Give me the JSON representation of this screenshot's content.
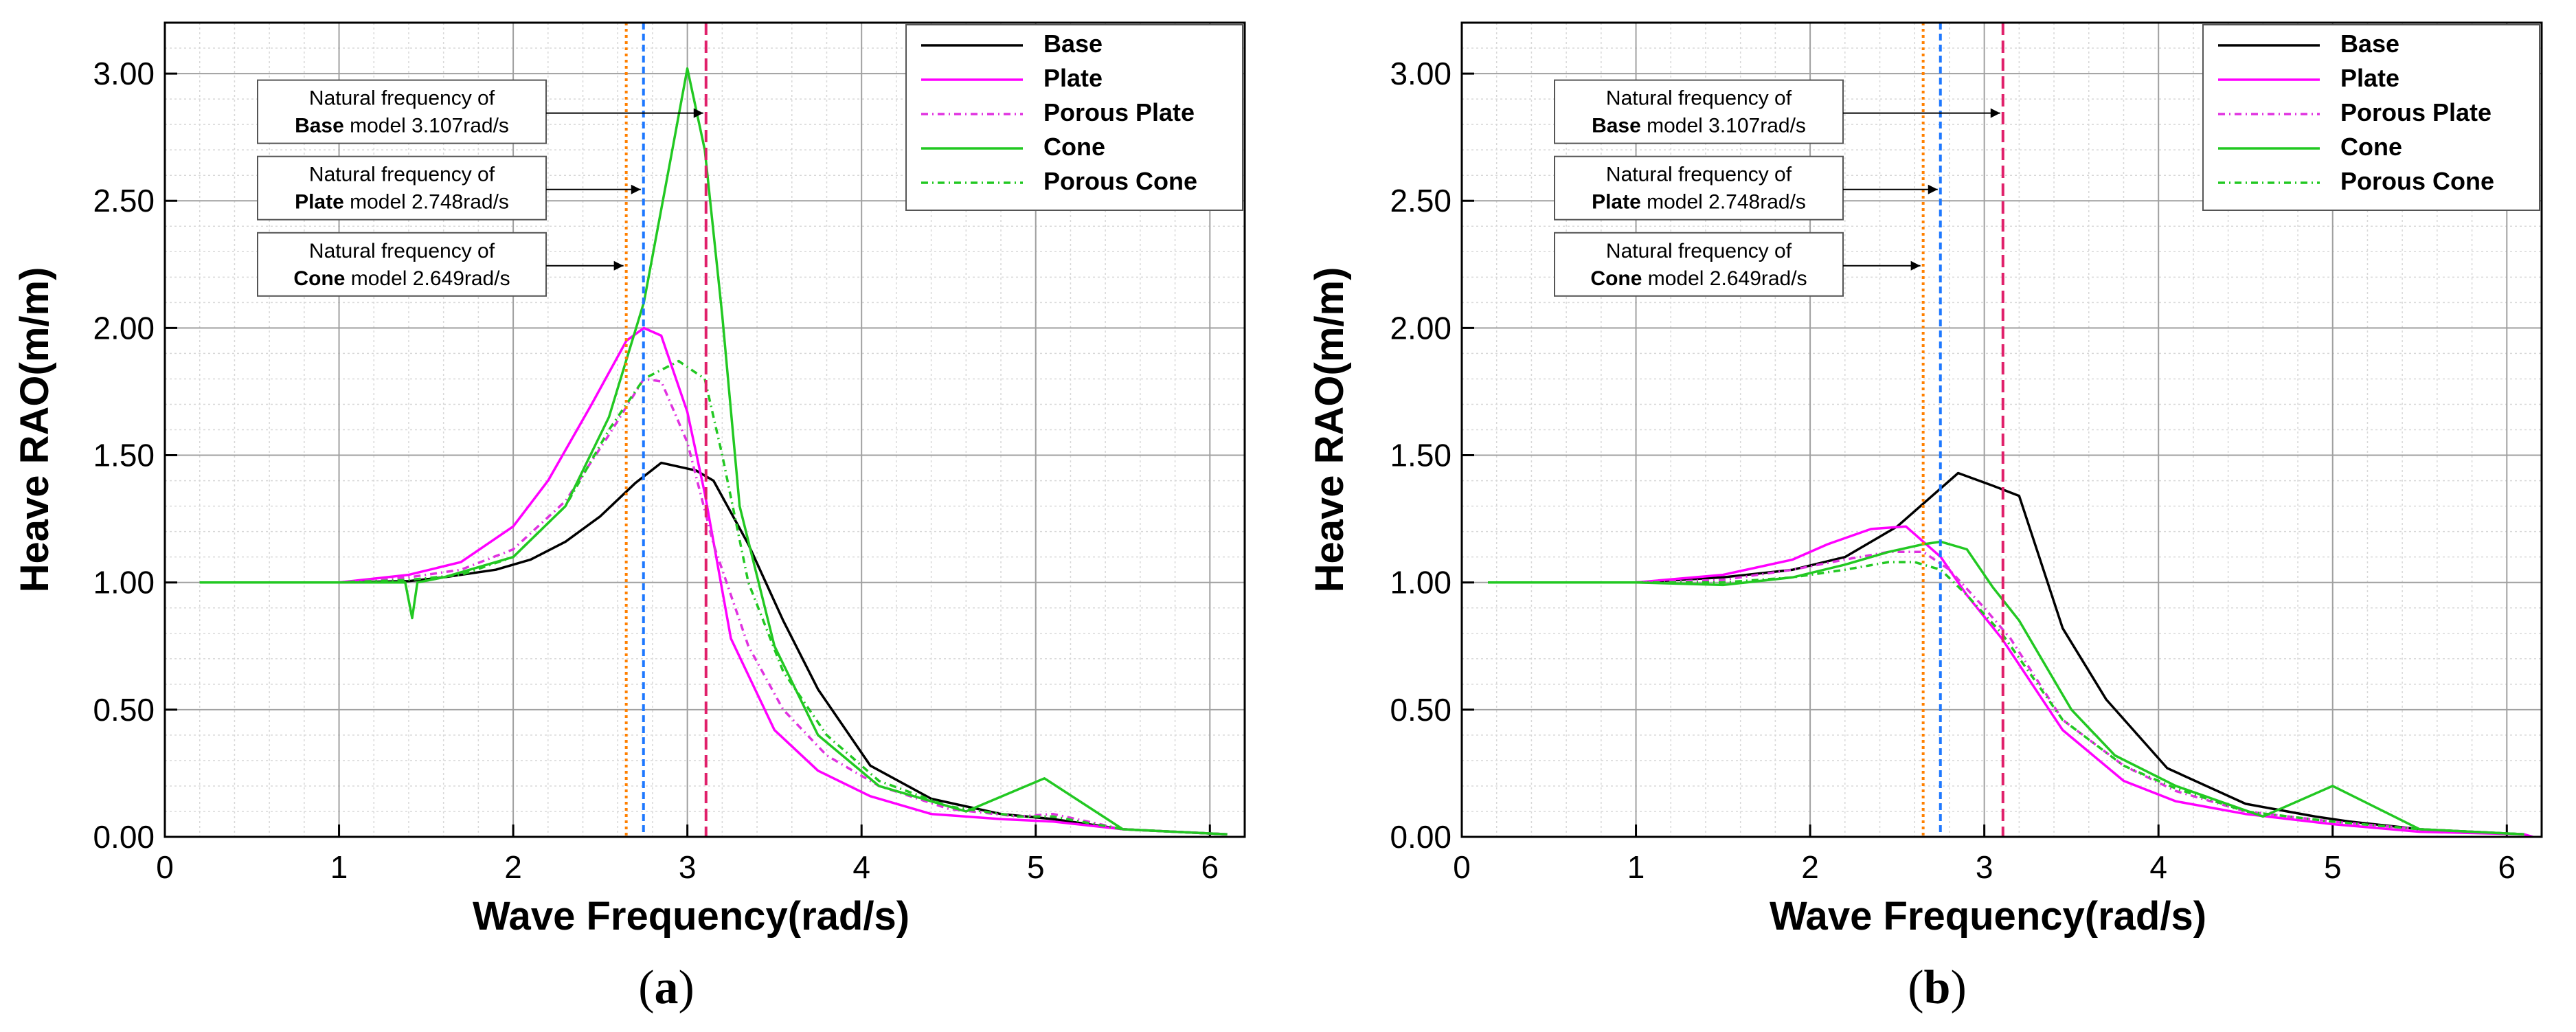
{
  "chart_data": [
    {
      "type": "line",
      "panel_label": "(a)",
      "xlabel": "Wave Frequency(rad/s)",
      "ylabel": "Heave RAO(m/m)",
      "xlim": [
        0,
        6.2
      ],
      "ylim": [
        0,
        3.2
      ],
      "xticks": [
        "0",
        "1",
        "2",
        "3",
        "4",
        "5",
        "6"
      ],
      "yticks": [
        "0.00",
        "0.50",
        "1.00",
        "1.50",
        "2.00",
        "2.50",
        "3.00"
      ],
      "grid": true,
      "legend_position": "top-right",
      "series": [
        {
          "name": "Base",
          "color": "#000000",
          "dash": "solid",
          "x": [
            0.2,
            1.0,
            1.4,
            1.6,
            1.9,
            2.1,
            2.3,
            2.5,
            2.7,
            2.85,
            3.05,
            3.15,
            3.35,
            3.55,
            3.75,
            4.05,
            4.4,
            4.8,
            5.1,
            5.5,
            6.1
          ],
          "y": [
            1.0,
            1.0,
            1.005,
            1.02,
            1.05,
            1.09,
            1.16,
            1.26,
            1.39,
            1.47,
            1.44,
            1.4,
            1.15,
            0.85,
            0.58,
            0.28,
            0.15,
            0.09,
            0.07,
            0.03,
            0.01
          ]
        },
        {
          "name": "Plate",
          "color": "#ff00ff",
          "dash": "solid",
          "x": [
            0.2,
            1.0,
            1.4,
            1.7,
            2.0,
            2.2,
            2.45,
            2.65,
            2.75,
            2.85,
            3.0,
            3.1,
            3.25,
            3.5,
            3.75,
            4.05,
            4.4,
            4.8,
            5.1,
            5.5,
            6.1
          ],
          "y": [
            1.0,
            1.0,
            1.03,
            1.08,
            1.22,
            1.4,
            1.7,
            1.95,
            2.0,
            1.97,
            1.67,
            1.35,
            0.78,
            0.42,
            0.26,
            0.16,
            0.09,
            0.07,
            0.06,
            0.03,
            0.01
          ]
        },
        {
          "name": "Porous Plate",
          "color": "#e032e0",
          "dash": "10,6,2,6",
          "x": [
            0.2,
            1.0,
            1.4,
            1.7,
            2.0,
            2.3,
            2.55,
            2.75,
            2.85,
            3.0,
            3.15,
            3.35,
            3.55,
            3.8,
            4.1,
            4.5,
            4.9,
            5.1,
            5.5,
            6.1
          ],
          "y": [
            1.0,
            1.0,
            1.02,
            1.05,
            1.13,
            1.32,
            1.58,
            1.8,
            1.79,
            1.55,
            1.15,
            0.75,
            0.5,
            0.32,
            0.2,
            0.11,
            0.08,
            0.09,
            0.03,
            0.01
          ]
        },
        {
          "name": "Cone",
          "color": "#22c822",
          "dash": "solid",
          "x": [
            0.2,
            1.0,
            1.38,
            1.42,
            1.45,
            1.6,
            2.0,
            2.3,
            2.55,
            2.75,
            2.9,
            3.0,
            3.1,
            3.2,
            3.3,
            3.5,
            3.75,
            4.1,
            4.6,
            5.05,
            5.5,
            6.1
          ],
          "y": [
            1.0,
            1.0,
            1.0,
            0.86,
            1.0,
            1.02,
            1.1,
            1.3,
            1.65,
            2.1,
            2.65,
            3.02,
            2.7,
            2.05,
            1.3,
            0.75,
            0.4,
            0.2,
            0.1,
            0.23,
            0.03,
            0.01
          ]
        },
        {
          "name": "Porous Cone",
          "color": "#22c822",
          "dash": "10,6,2,6",
          "x": [
            0.2,
            1.0,
            1.4,
            1.7,
            2.0,
            2.3,
            2.55,
            2.75,
            2.95,
            3.1,
            3.2,
            3.35,
            3.55,
            3.8,
            4.1,
            4.5,
            4.9,
            5.1,
            5.5,
            6.1
          ],
          "y": [
            1.0,
            1.0,
            1.01,
            1.03,
            1.1,
            1.3,
            1.6,
            1.8,
            1.87,
            1.8,
            1.5,
            1.0,
            0.65,
            0.4,
            0.22,
            0.12,
            0.08,
            0.08,
            0.03,
            0.01
          ]
        }
      ],
      "vlines": [
        {
          "name": "cone-natural-frequency",
          "x": 2.649,
          "color": "#ff8000",
          "dash": "4,5"
        },
        {
          "name": "plate-natural-frequency",
          "x": 2.748,
          "color": "#1e78ff",
          "dash": "10,6"
        },
        {
          "name": "base-natural-frequency",
          "x": 3.107,
          "color": "#e0206a",
          "dash": "18,8"
        }
      ],
      "annotations": [
        {
          "line1": "Natural frequency of",
          "bold": "Base",
          "rest": " model 3.107rad/s",
          "target_x": 3.107,
          "y": 2.85
        },
        {
          "line1": "Natural frequency of",
          "bold": "Plate",
          "rest": " model 2.748rad/s",
          "target_x": 2.748,
          "y": 2.55
        },
        {
          "line1": "Natural frequency of",
          "bold": "Cone",
          "rest": " model 2.649rad/s",
          "target_x": 2.649,
          "y": 2.25
        }
      ]
    },
    {
      "type": "line",
      "panel_label": "(b)",
      "xlabel": "Wave Frequency(rad/s)",
      "ylabel": "Heave RAO(m/m)",
      "xlim": [
        0,
        6.2
      ],
      "ylim": [
        0,
        3.2
      ],
      "xticks": [
        "0",
        "1",
        "2",
        "3",
        "4",
        "5",
        "6"
      ],
      "yticks": [
        "0.00",
        "0.50",
        "1.00",
        "1.50",
        "2.00",
        "2.50",
        "3.00"
      ],
      "grid": true,
      "legend_position": "top-right",
      "series": [
        {
          "name": "Base",
          "color": "#000000",
          "dash": "solid",
          "x": [
            0.15,
            1.0,
            1.5,
            1.9,
            2.2,
            2.5,
            2.7,
            2.85,
            3.05,
            3.2,
            3.45,
            3.7,
            4.05,
            4.5,
            4.9,
            5.1,
            5.5,
            6.1
          ],
          "y": [
            1.0,
            1.0,
            1.02,
            1.05,
            1.1,
            1.22,
            1.34,
            1.43,
            1.38,
            1.34,
            0.82,
            0.54,
            0.27,
            0.13,
            0.08,
            0.06,
            0.03,
            0.01
          ]
        },
        {
          "name": "Plate",
          "color": "#ff00ff",
          "dash": "solid",
          "x": [
            0.15,
            1.0,
            1.5,
            1.9,
            2.1,
            2.35,
            2.55,
            2.75,
            2.9,
            3.1,
            3.45,
            3.8,
            4.1,
            4.5,
            5.0,
            5.5,
            6.1,
            6.15
          ],
          "y": [
            1.0,
            1.0,
            1.03,
            1.09,
            1.15,
            1.21,
            1.22,
            1.1,
            0.95,
            0.78,
            0.42,
            0.22,
            0.14,
            0.09,
            0.05,
            0.02,
            0.01,
            0.0
          ]
        },
        {
          "name": "Porous Plate",
          "color": "#e032e0",
          "dash": "10,6,2,6",
          "x": [
            0.15,
            1.0,
            1.5,
            1.9,
            2.2,
            2.45,
            2.65,
            2.8,
            3.0,
            3.15,
            3.45,
            3.8,
            4.1,
            4.5,
            5.0,
            5.5,
            6.1
          ],
          "y": [
            1.0,
            1.0,
            1.01,
            1.05,
            1.09,
            1.12,
            1.12,
            1.05,
            0.9,
            0.78,
            0.46,
            0.28,
            0.18,
            0.1,
            0.06,
            0.03,
            0.01
          ]
        },
        {
          "name": "Cone",
          "color": "#22c822",
          "dash": "solid",
          "x": [
            0.15,
            1.0,
            1.5,
            1.9,
            2.2,
            2.45,
            2.65,
            2.75,
            2.9,
            3.05,
            3.2,
            3.5,
            3.75,
            4.1,
            4.6,
            5.0,
            5.5,
            6.1
          ],
          "y": [
            1.0,
            1.0,
            0.99,
            1.02,
            1.07,
            1.12,
            1.15,
            1.16,
            1.13,
            0.98,
            0.85,
            0.5,
            0.32,
            0.2,
            0.08,
            0.2,
            0.03,
            0.01
          ]
        },
        {
          "name": "Porous Cone",
          "color": "#22c822",
          "dash": "10,6,2,6",
          "x": [
            0.15,
            1.0,
            1.5,
            1.9,
            2.2,
            2.45,
            2.6,
            2.75,
            2.9,
            3.1,
            3.45,
            3.8,
            4.1,
            4.5,
            5.0,
            5.5,
            6.1
          ],
          "y": [
            1.0,
            1.0,
            1.0,
            1.02,
            1.05,
            1.08,
            1.08,
            1.05,
            0.95,
            0.8,
            0.46,
            0.28,
            0.19,
            0.1,
            0.06,
            0.03,
            0.01
          ]
        }
      ],
      "vlines": [
        {
          "name": "cone-natural-frequency",
          "x": 2.649,
          "color": "#ff8000",
          "dash": "4,5"
        },
        {
          "name": "plate-natural-frequency",
          "x": 2.748,
          "color": "#1e78ff",
          "dash": "10,6"
        },
        {
          "name": "base-natural-frequency",
          "x": 3.107,
          "color": "#e0206a",
          "dash": "18,8"
        }
      ],
      "annotations": [
        {
          "line1": "Natural frequency of",
          "bold": "Base",
          "rest": " model 3.107rad/s",
          "target_x": 3.107,
          "y": 2.85
        },
        {
          "line1": "Natural frequency of",
          "bold": "Plate",
          "rest": " model 2.748rad/s",
          "target_x": 2.748,
          "y": 2.55
        },
        {
          "line1": "Natural frequency of",
          "bold": "Cone",
          "rest": " model 2.649rad/s",
          "target_x": 2.649,
          "y": 2.25
        }
      ]
    }
  ]
}
